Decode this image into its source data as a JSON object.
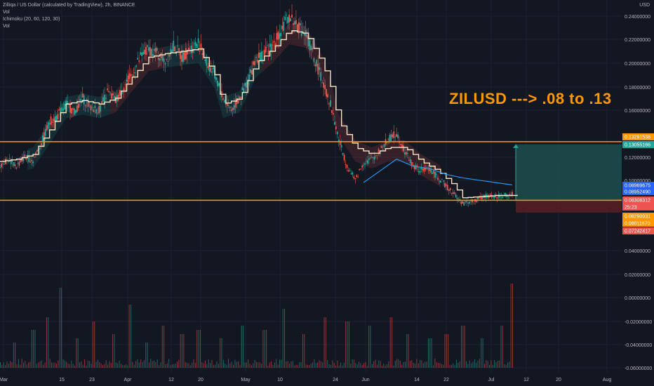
{
  "legend": {
    "main": "Zilliqa / US Dollar (calculated by TradingView), 2h, BINANCE",
    "vol1": "Vol",
    "ichimoku": "Ichimoku (20, 60, 120, 30)",
    "vol2": "Vol"
  },
  "annotation": "ZILUSD ---> .08 to .13",
  "colors": {
    "background": "#131722",
    "grid": "#1e222d",
    "orange": "#ff9800",
    "baseline": "#f7e4c4",
    "leading": "#2196f3",
    "up": "#26a69a",
    "down": "#ef5350",
    "target_fill": "#1f4e4d",
    "stop_fill": "#5a1f24"
  },
  "chart_data": {
    "type": "candlestick",
    "symbol": "ZILUSD",
    "interval": "2h",
    "exchange": "BINANCE",
    "ylabel": "USD",
    "price_ticks": [
      "0.24000000",
      "0.22000000",
      "0.20000000",
      "0.18000000",
      "0.16000000",
      "0.12000000",
      "0.10000000",
      "0.04000000",
      "0.02000000",
      "0.00000000",
      "-0.02000000",
      "-0.04000000",
      "-0.06000000"
    ],
    "x_ticks": [
      "Mar",
      "15",
      "23",
      "Apr",
      "12",
      "20",
      "May",
      "10",
      "24",
      "Jun",
      "14",
      "22",
      "Jul",
      "12",
      "20",
      "Aug"
    ],
    "horizontal_lines": [
      0.13291538,
      0.0829
    ],
    "price_labels": [
      {
        "text": "0.13291538",
        "kind": "orange"
      },
      {
        "text": "0.13055166",
        "kind": "teal"
      },
      {
        "text": "0.08969675",
        "kind": "blue"
      },
      {
        "text": "0.08952490",
        "kind": "blue"
      },
      {
        "text": "0.08308312",
        "kind": "red"
      },
      {
        "text": "25:23",
        "kind": "red"
      },
      {
        "text": "0.08290931",
        "kind": "orange"
      },
      {
        "text": "0.08011670",
        "kind": "orange"
      },
      {
        "text": "0.07242417",
        "kind": "red"
      }
    ],
    "position": {
      "entry": 0.0829,
      "target": 0.1306,
      "stop": 0.0724
    },
    "price_path": [
      [
        0,
        0.113
      ],
      [
        3,
        0.118
      ],
      [
        6,
        0.112
      ],
      [
        9,
        0.12
      ],
      [
        12,
        0.117
      ],
      [
        15,
        0.132
      ],
      [
        18,
        0.15
      ],
      [
        21,
        0.155
      ],
      [
        24,
        0.165
      ],
      [
        27,
        0.158
      ],
      [
        30,
        0.17
      ],
      [
        33,
        0.162
      ],
      [
        36,
        0.16
      ],
      [
        39,
        0.175
      ],
      [
        42,
        0.168
      ],
      [
        45,
        0.18
      ],
      [
        48,
        0.19
      ],
      [
        51,
        0.205
      ],
      [
        54,
        0.212
      ],
      [
        57,
        0.208
      ],
      [
        60,
        0.202
      ],
      [
        63,
        0.215
      ],
      [
        66,
        0.205
      ],
      [
        69,
        0.212
      ],
      [
        72,
        0.218
      ],
      [
        75,
        0.2
      ],
      [
        78,
        0.19
      ],
      [
        81,
        0.17
      ],
      [
        84,
        0.16
      ],
      [
        87,
        0.17
      ],
      [
        90,
        0.185
      ],
      [
        93,
        0.205
      ],
      [
        96,
        0.208
      ],
      [
        99,
        0.215
      ],
      [
        102,
        0.228
      ],
      [
        105,
        0.24
      ],
      [
        108,
        0.232
      ],
      [
        111,
        0.225
      ],
      [
        114,
        0.205
      ],
      [
        117,
        0.185
      ],
      [
        120,
        0.165
      ],
      [
        123,
        0.135
      ],
      [
        126,
        0.112
      ],
      [
        129,
        0.1
      ],
      [
        132,
        0.115
      ],
      [
        135,
        0.118
      ],
      [
        138,
        0.125
      ],
      [
        141,
        0.135
      ],
      [
        144,
        0.14
      ],
      [
        147,
        0.125
      ],
      [
        150,
        0.112
      ],
      [
        153,
        0.108
      ],
      [
        156,
        0.11
      ],
      [
        159,
        0.102
      ],
      [
        162,
        0.095
      ],
      [
        165,
        0.088
      ],
      [
        168,
        0.08
      ],
      [
        171,
        0.082
      ],
      [
        174,
        0.084
      ],
      [
        177,
        0.087
      ],
      [
        180,
        0.086
      ],
      [
        183,
        0.087
      ],
      [
        186,
        0.088
      ]
    ],
    "baseline_path": [
      [
        0,
        0.116
      ],
      [
        6,
        0.118
      ],
      [
        12,
        0.122
      ],
      [
        18,
        0.143
      ],
      [
        24,
        0.165
      ],
      [
        30,
        0.168
      ],
      [
        36,
        0.165
      ],
      [
        42,
        0.17
      ],
      [
        48,
        0.188
      ],
      [
        54,
        0.205
      ],
      [
        60,
        0.208
      ],
      [
        66,
        0.21
      ],
      [
        72,
        0.212
      ],
      [
        78,
        0.19
      ],
      [
        81,
        0.165
      ],
      [
        87,
        0.17
      ],
      [
        93,
        0.2
      ],
      [
        99,
        0.212
      ],
      [
        105,
        0.228
      ],
      [
        111,
        0.225
      ],
      [
        117,
        0.2
      ],
      [
        120,
        0.18
      ],
      [
        123,
        0.15
      ],
      [
        129,
        0.128
      ],
      [
        135,
        0.122
      ],
      [
        141,
        0.128
      ],
      [
        147,
        0.128
      ],
      [
        153,
        0.116
      ],
      [
        159,
        0.108
      ],
      [
        165,
        0.095
      ],
      [
        168,
        0.085
      ],
      [
        174,
        0.086
      ],
      [
        180,
        0.087
      ],
      [
        186,
        0.087
      ]
    ],
    "leading_path": [
      [
        132,
        0.098
      ],
      [
        138,
        0.108
      ],
      [
        144,
        0.118
      ],
      [
        150,
        0.112
      ],
      [
        156,
        0.11
      ],
      [
        162,
        0.105
      ],
      [
        168,
        0.102
      ],
      [
        174,
        0.1
      ],
      [
        180,
        0.098
      ],
      [
        186,
        0.096
      ]
    ],
    "volume_spikes": [
      [
        5,
        0.3
      ],
      [
        12,
        0.45
      ],
      [
        17,
        0.6
      ],
      [
        22,
        0.95
      ],
      [
        28,
        0.35
      ],
      [
        34,
        0.55
      ],
      [
        41,
        0.4
      ],
      [
        47,
        0.75
      ],
      [
        53,
        0.3
      ],
      [
        59,
        0.5
      ],
      [
        66,
        0.4
      ],
      [
        72,
        0.45
      ],
      [
        80,
        0.35
      ],
      [
        88,
        0.5
      ],
      [
        96,
        0.45
      ],
      [
        103,
        0.7
      ],
      [
        110,
        0.4
      ],
      [
        118,
        0.6
      ],
      [
        126,
        0.55
      ],
      [
        134,
        0.5
      ],
      [
        142,
        0.6
      ],
      [
        148,
        0.4
      ],
      [
        156,
        0.35
      ],
      [
        162,
        0.4
      ],
      [
        168,
        0.5
      ],
      [
        175,
        0.35
      ],
      [
        182,
        0.5
      ],
      [
        186,
        1.0
      ]
    ]
  }
}
